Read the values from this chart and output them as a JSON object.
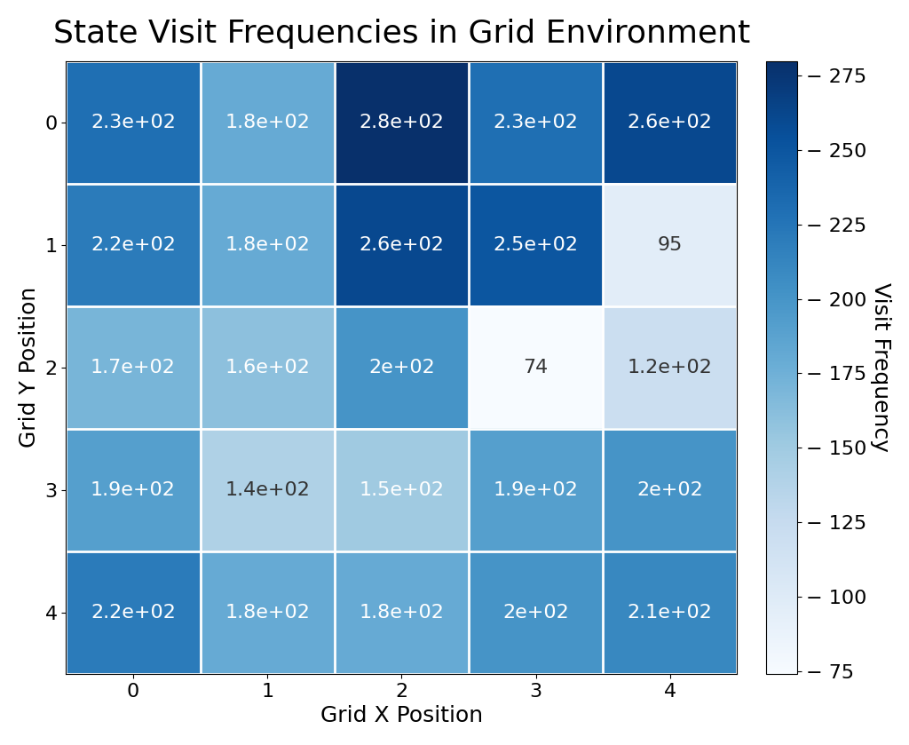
{
  "title": "State Visit Frequencies in Grid Environment",
  "xlabel": "Grid X Position",
  "ylabel": "Grid Y Position",
  "colorbar_label": "Visit Frequency",
  "grid_data": [
    [
      230,
      180,
      280,
      230,
      260
    ],
    [
      220,
      180,
      260,
      250,
      95
    ],
    [
      170,
      160,
      200,
      74,
      120
    ],
    [
      190,
      140,
      150,
      190,
      200
    ],
    [
      220,
      180,
      180,
      200,
      210
    ]
  ],
  "x_labels": [
    "0",
    "1",
    "2",
    "3",
    "4"
  ],
  "y_labels": [
    "0",
    "1",
    "2",
    "3",
    "4"
  ],
  "cmap": "Blues",
  "vmin": 74,
  "vmax": 280,
  "title_fontsize": 26,
  "label_fontsize": 18,
  "tick_fontsize": 16,
  "annot_fontsize": 16,
  "colorbar_tick_fontsize": 16,
  "colorbar_ticks": [
    75,
    100,
    125,
    150,
    175,
    200,
    225,
    250,
    275
  ],
  "white_text_threshold": 0.35
}
